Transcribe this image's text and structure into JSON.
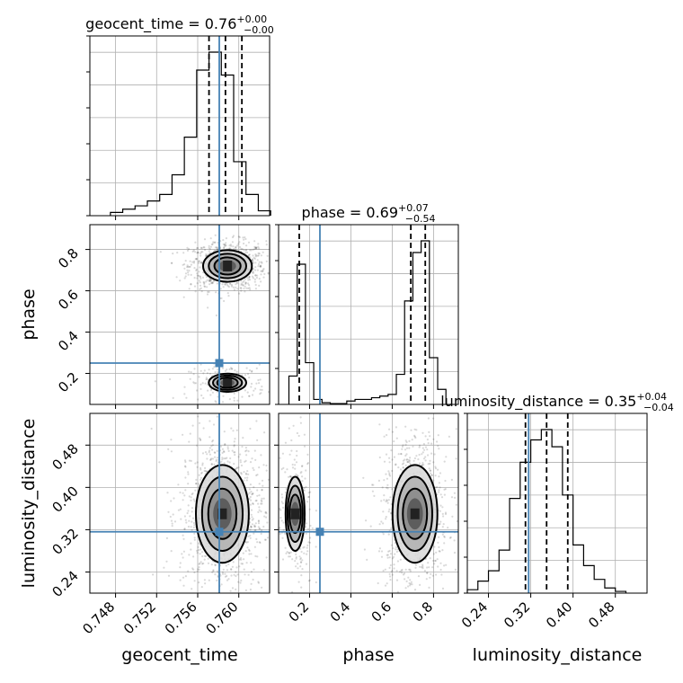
{
  "chart_data": {
    "type": "corner",
    "parameters": [
      {
        "name": "geocent_time",
        "axis_label": "geocent_time",
        "title_prefix": "geocent_time = ",
        "median": "0.76",
        "plus": "+0.00",
        "minus": "−0.00",
        "range": [
          0.7455,
          0.763
        ],
        "ticks": [
          0.748,
          0.752,
          0.756,
          0.76
        ],
        "tick_labels": [
          "0.748",
          "0.752",
          "0.756",
          "0.760"
        ],
        "truth": 0.7581,
        "quantiles": [
          0.7571,
          0.7587,
          0.7603
        ],
        "hist_bins": [
          0.7475,
          0.7487,
          0.7499,
          0.7511,
          0.7523,
          0.7535,
          0.7547,
          0.7559,
          0.7571,
          0.7583,
          0.7595,
          0.7607,
          0.7619,
          0.7631
        ],
        "hist_counts": [
          0.02,
          0.04,
          0.06,
          0.09,
          0.13,
          0.25,
          0.48,
          0.89,
          1.0,
          0.86,
          0.33,
          0.13,
          0.03
        ]
      },
      {
        "name": "phase",
        "axis_label": "phase",
        "title_prefix": "phase = ",
        "median": "0.69",
        "plus": "+0.07",
        "minus": "−0.54",
        "range": [
          0.05,
          0.92
        ],
        "ticks": [
          0.2,
          0.4,
          0.6,
          0.8
        ],
        "tick_labels": [
          "0.2",
          "0.4",
          "0.6",
          "0.8"
        ],
        "truth": 0.25,
        "quantiles": [
          0.15,
          0.69,
          0.76
        ],
        "hist_bins": [
          0.1,
          0.14,
          0.18,
          0.22,
          0.26,
          0.3,
          0.34,
          0.38,
          0.42,
          0.46,
          0.5,
          0.54,
          0.58,
          0.62,
          0.66,
          0.7,
          0.74,
          0.78,
          0.82,
          0.86
        ],
        "hist_counts": [
          0.17,
          0.84,
          0.25,
          0.03,
          0.01,
          0.005,
          0.005,
          0.02,
          0.03,
          0.03,
          0.04,
          0.05,
          0.06,
          0.18,
          0.62,
          0.91,
          0.98,
          0.28,
          0.09
        ]
      },
      {
        "name": "luminosity_distance",
        "axis_label": "luminosity_distance",
        "title_prefix": "luminosity_distance = ",
        "median": "0.35",
        "plus": "+0.04",
        "minus": "−0.04",
        "range": [
          0.2,
          0.54
        ],
        "ticks": [
          0.24,
          0.32,
          0.4,
          0.48
        ],
        "tick_labels": [
          "0.24",
          "0.32",
          "0.40",
          "0.48"
        ],
        "truth": 0.316,
        "quantiles": [
          0.31,
          0.35,
          0.39
        ],
        "hist_bins": [
          0.2,
          0.22,
          0.24,
          0.26,
          0.28,
          0.3,
          0.32,
          0.34,
          0.36,
          0.38,
          0.4,
          0.42,
          0.44,
          0.46,
          0.48,
          0.5
        ],
        "hist_counts": [
          0.02,
          0.07,
          0.13,
          0.25,
          0.55,
          0.76,
          0.89,
          0.95,
          0.85,
          0.57,
          0.28,
          0.16,
          0.08,
          0.03,
          0.01
        ]
      }
    ],
    "joint_modes": [
      {
        "x": "geocent_time",
        "y": "phase",
        "modes": [
          {
            "cx": 0.7589,
            "cy": 0.72,
            "sx": 0.0011,
            "sy": 0.035,
            "weight": 0.82
          },
          {
            "cx": 0.7589,
            "cy": 0.155,
            "sx": 0.0011,
            "sy": 0.025,
            "weight": 0.18
          }
        ]
      },
      {
        "x": "geocent_time",
        "y": "luminosity_distance",
        "modes": [
          {
            "cx": 0.7584,
            "cy": 0.35,
            "sx": 0.0012,
            "sy": 0.045,
            "weight": 1.0
          }
        ]
      },
      {
        "x": "phase",
        "y": "luminosity_distance",
        "modes": [
          {
            "cx": 0.13,
            "cy": 0.35,
            "sx": 0.025,
            "sy": 0.045,
            "weight": 0.22
          },
          {
            "cx": 0.71,
            "cy": 0.35,
            "sx": 0.05,
            "sy": 0.045,
            "weight": 0.78
          }
        ]
      }
    ],
    "contour_levels": [
      "0.5σ",
      "1σ",
      "1.5σ",
      "2σ"
    ],
    "truth_color": "#4682b4",
    "grid": true
  }
}
